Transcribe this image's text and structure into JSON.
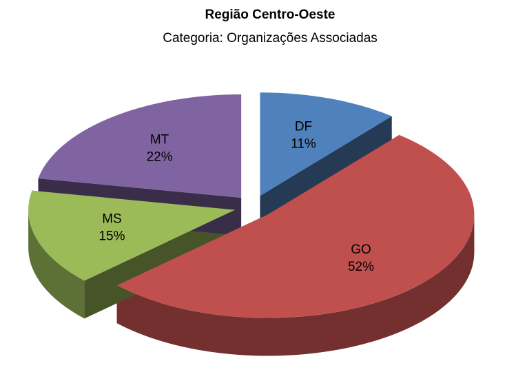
{
  "chart_data": {
    "type": "pie",
    "title": "Região Centro-Oeste",
    "subtitle": "Categoria: Organizações Associadas",
    "categories": [
      "DF",
      "GO",
      "MS",
      "MT"
    ],
    "values": [
      11,
      52,
      15,
      22
    ],
    "value_labels": [
      "11%",
      "52%",
      "15%",
      "22%"
    ],
    "colors": [
      "#4f81bd",
      "#c0504d",
      "#9bbb59",
      "#8064a2"
    ]
  }
}
